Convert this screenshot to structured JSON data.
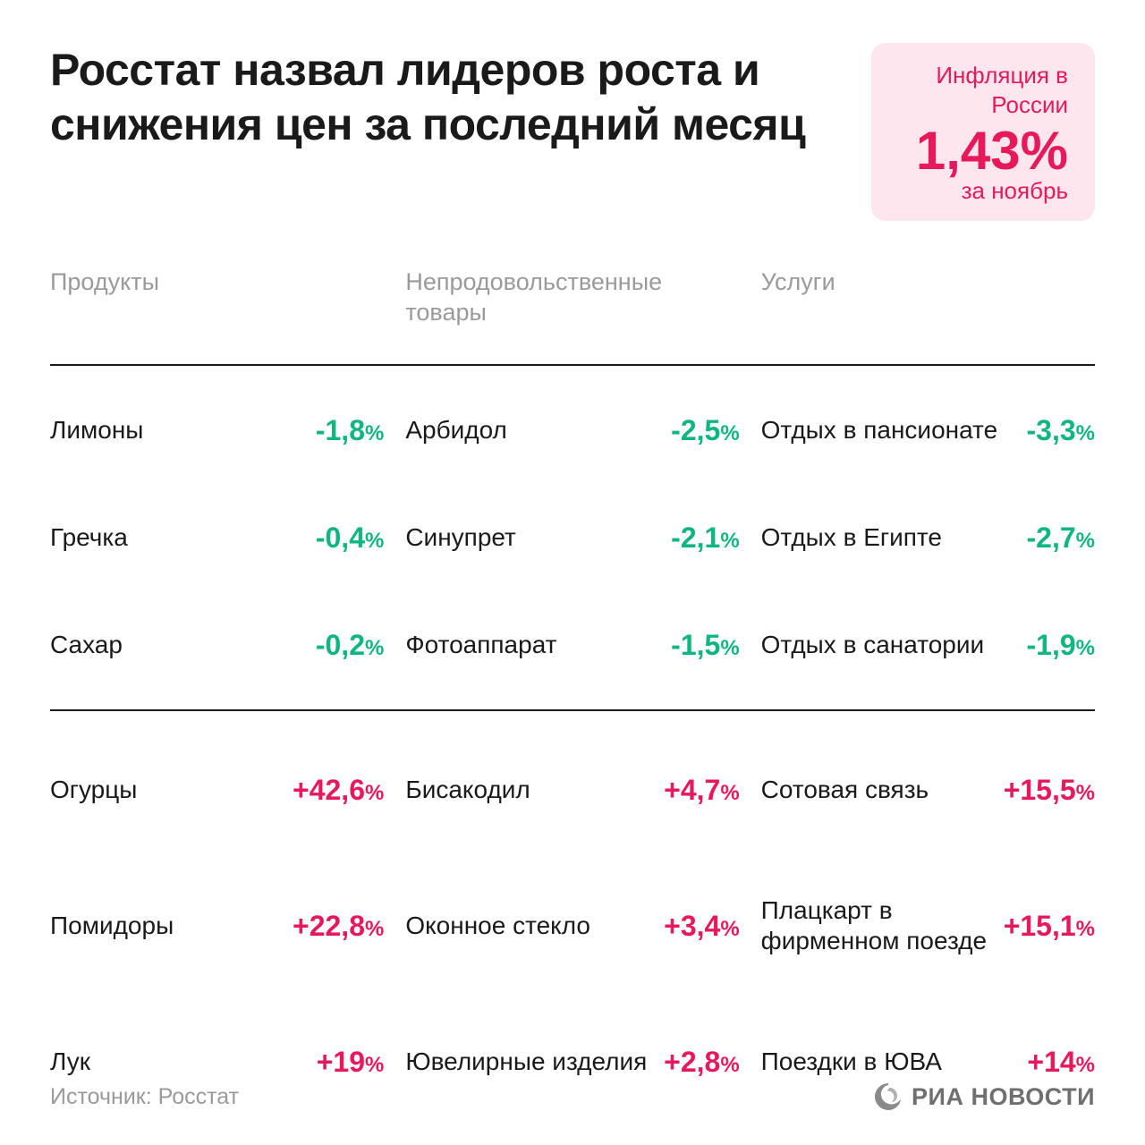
{
  "title": "Росстат назвал лидеров роста и снижения цен за последний месяц",
  "inflation": {
    "label": "Инфляция\nв России",
    "value": "1,43%",
    "period": "за ноябрь",
    "box_bg": "#fde6ed",
    "text_color": "#e6195b"
  },
  "colors": {
    "negative": "#0fb67d",
    "positive": "#e6195b",
    "header_grey": "#9a9a9a",
    "text": "#1a1a1a",
    "background": "#ffffff",
    "logo_grey": "#6f6f6f"
  },
  "typography": {
    "title_fontsize": 50,
    "title_weight": 700,
    "col_header_fontsize": 27,
    "item_name_fontsize": 28,
    "item_value_fontsize": 32,
    "percent_fontsize": 24,
    "inflation_value_fontsize": 60
  },
  "columns": [
    {
      "header": "Продукты",
      "decreases": [
        {
          "name": "Лимоны",
          "value": "-1,8"
        },
        {
          "name": "Гречка",
          "value": "-0,4"
        },
        {
          "name": "Сахар",
          "value": "-0,2"
        }
      ],
      "increases": [
        {
          "name": "Огурцы",
          "value": "+42,6"
        },
        {
          "name": "Помидоры",
          "value": "+22,8"
        },
        {
          "name": "Лук",
          "value": "+19"
        }
      ]
    },
    {
      "header": "Непродовольственные товары",
      "decreases": [
        {
          "name": "Арбидол",
          "value": "-2,5"
        },
        {
          "name": "Синупрет",
          "value": "-2,1"
        },
        {
          "name": "Фотоаппарат",
          "value": "-1,5"
        }
      ],
      "increases": [
        {
          "name": "Бисакодил",
          "value": "+4,7"
        },
        {
          "name": "Оконное стекло",
          "value": "+3,4"
        },
        {
          "name": "Ювелирные изделия",
          "value": "+2,8"
        }
      ]
    },
    {
      "header": "Услуги",
      "decreases": [
        {
          "name": "Отдых в пансионате",
          "value": "-3,3"
        },
        {
          "name": "Отдых в Египте",
          "value": "-2,7"
        },
        {
          "name": "Отдых в санатории",
          "value": "-1,9"
        }
      ],
      "increases": [
        {
          "name": "Сотовая связь",
          "value": "+15,5"
        },
        {
          "name": "Плацкарт в фирменном поезде",
          "value": "+15,1"
        },
        {
          "name": "Поездки в ЮВА",
          "value": "+14"
        }
      ]
    }
  ],
  "source": "Источник: Росстат",
  "logo_text": "РИА НОВОСТИ"
}
